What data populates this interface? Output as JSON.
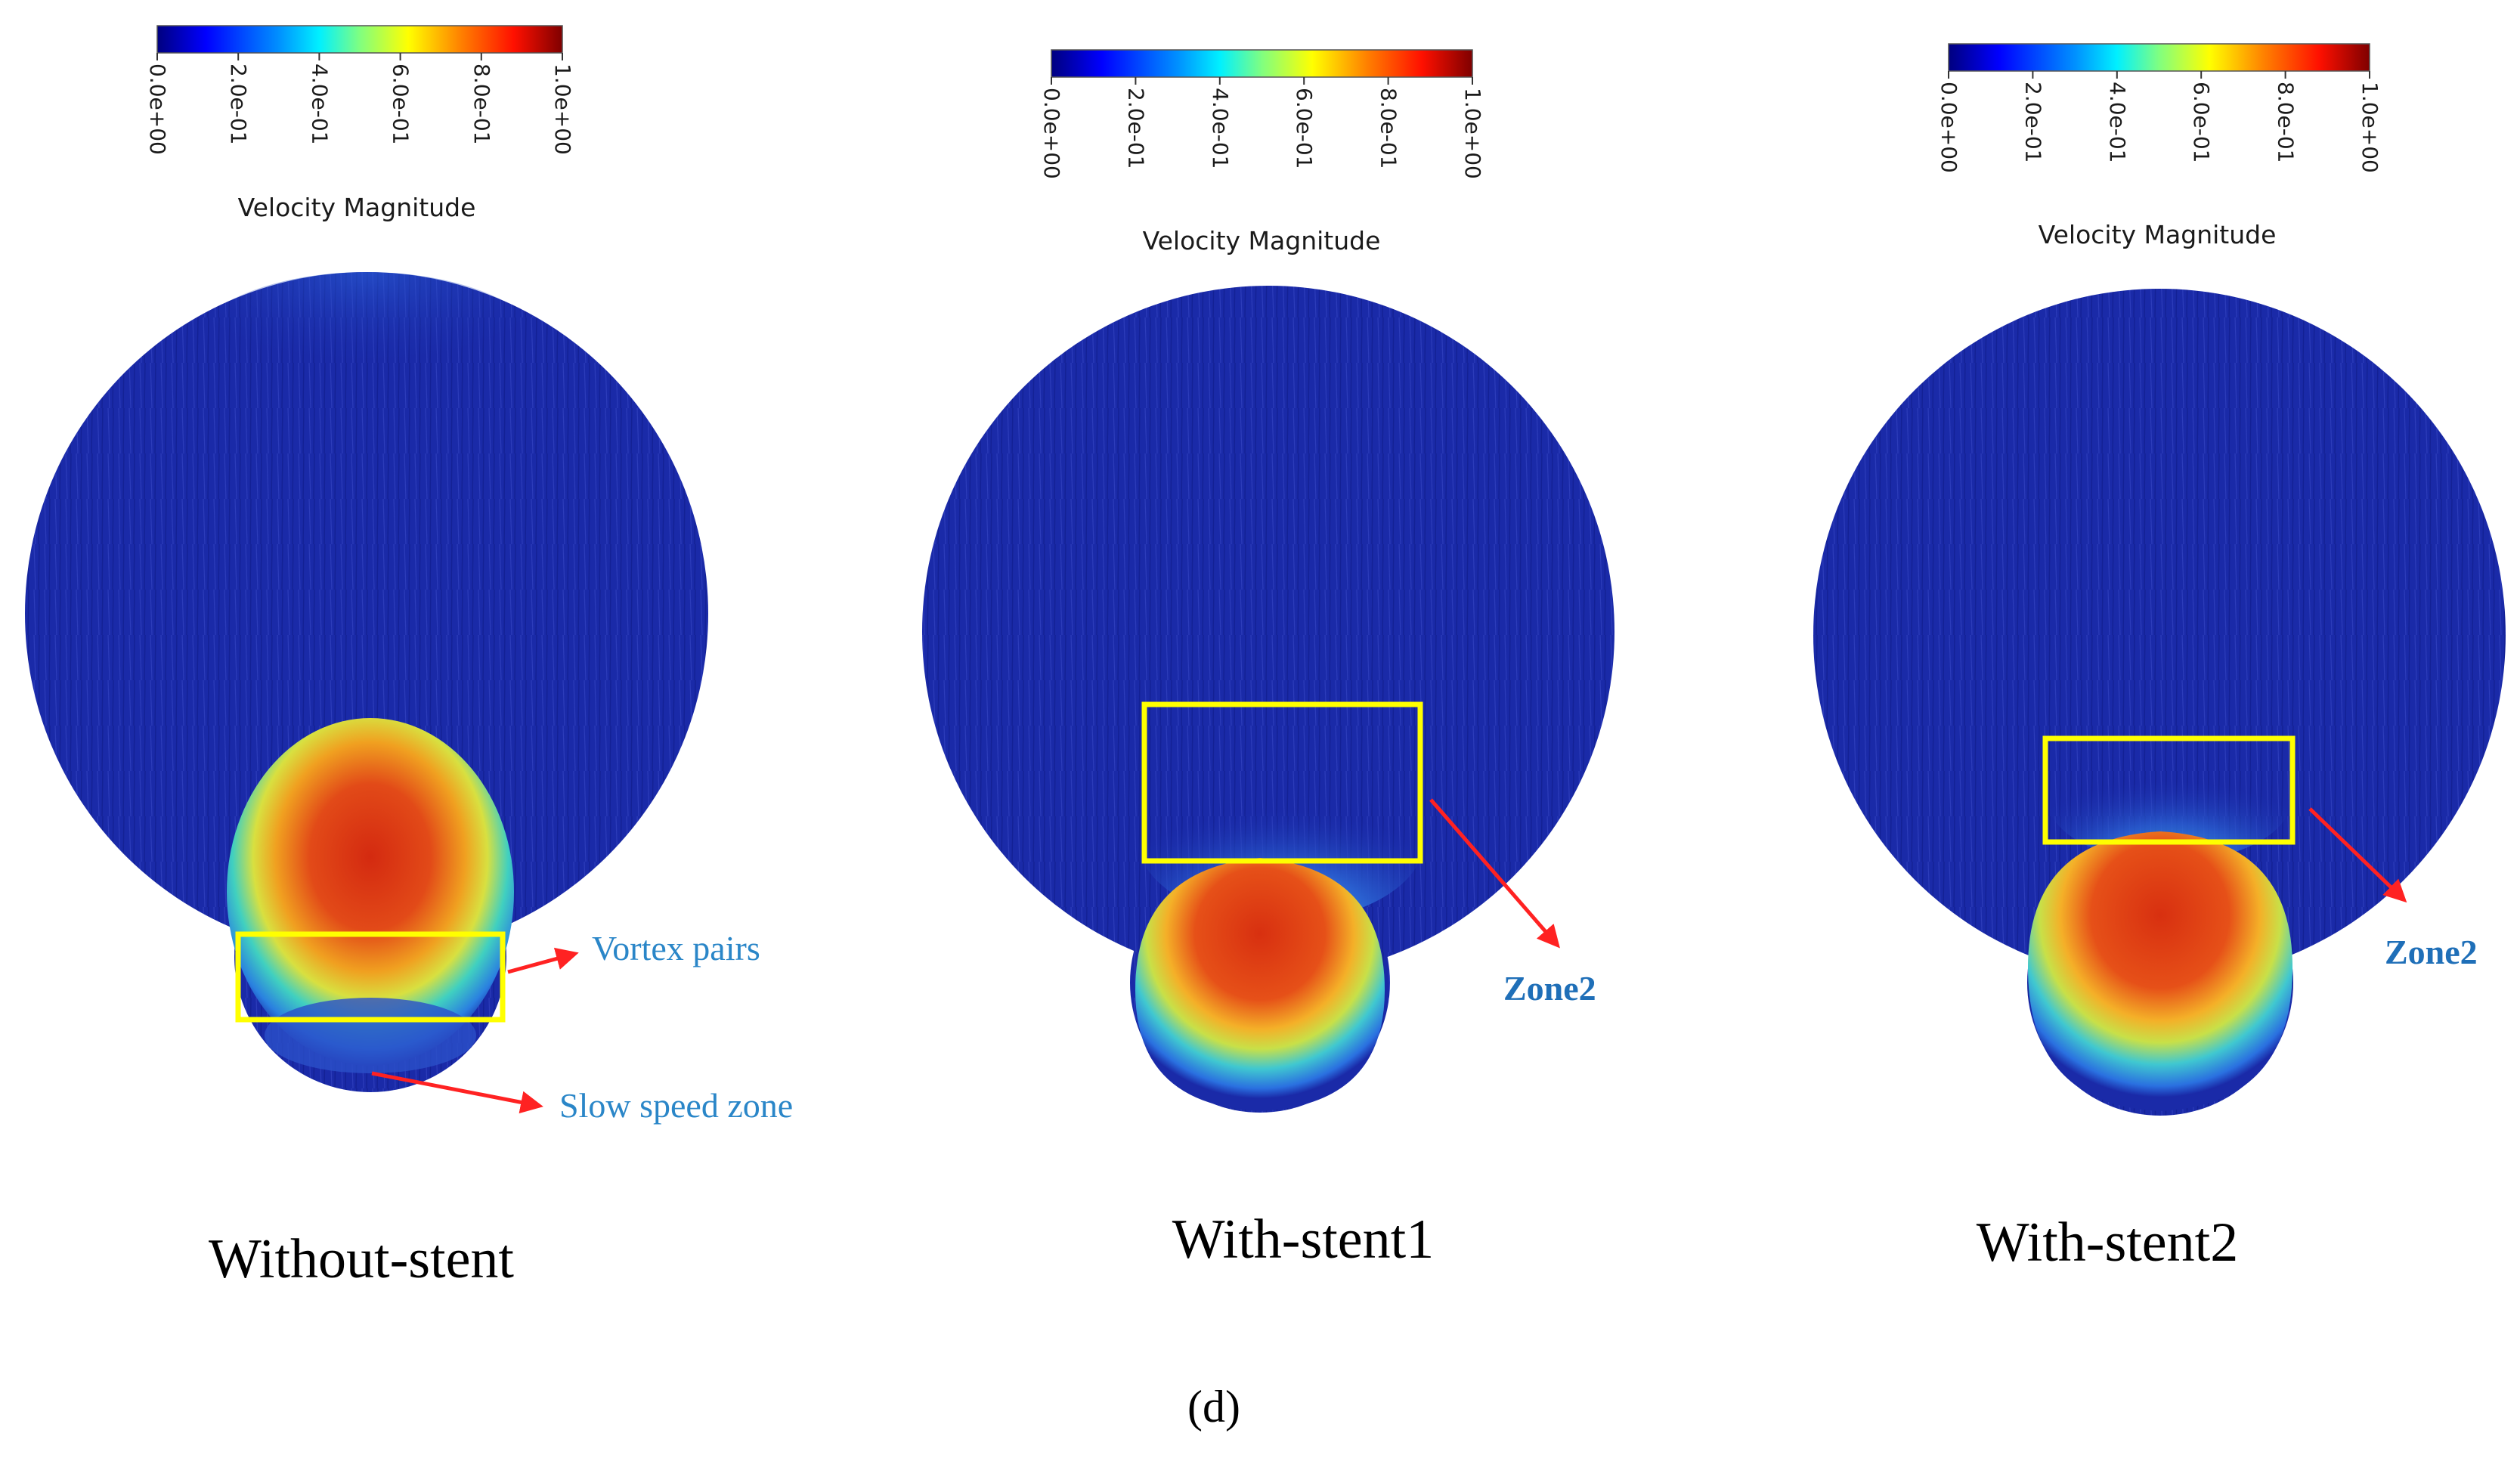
{
  "colorbar": {
    "title": "Velocity Magnitude",
    "ticks": [
      "0.0e+00",
      "2.0e-01",
      "4.0e-01",
      "6.0e-01",
      "8.0e-01",
      "1.0e+00"
    ],
    "range": [
      0.0,
      1.0
    ],
    "colormap": [
      "#00007f",
      "#0000ff",
      "#0080ff",
      "#00ffff",
      "#80ff80",
      "#ffff00",
      "#ff8000",
      "#ff0000",
      "#7f0000"
    ]
  },
  "panels": [
    {
      "caption": "Without-stent",
      "annotations": [
        "Vortex pairs",
        "Slow speed zone"
      ]
    },
    {
      "caption": "With-stent1",
      "annotations": [
        "Zone2"
      ]
    },
    {
      "caption": "With-stent2",
      "annotations": [
        "Zone2"
      ]
    }
  ],
  "figure_label": "(d)",
  "colors": {
    "background_flow": "#1a2aa8",
    "highlight_box": "#ffff00",
    "arrow": "#ff2222",
    "annotation_text": "#2a86c8"
  }
}
